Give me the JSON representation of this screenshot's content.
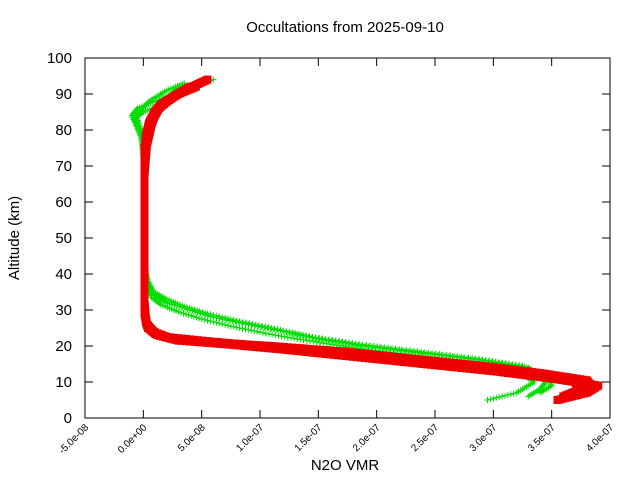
{
  "chart_data": {
    "type": "scatter",
    "title": "Occultations from 2025-09-10",
    "xlabel": "N2O VMR",
    "ylabel": "Altitude (km)",
    "xlim": [
      -5e-08,
      4e-07
    ],
    "ylim": [
      0,
      100
    ],
    "x_ticks": [
      -5e-08,
      0,
      5e-08,
      1e-07,
      1.5e-07,
      2e-07,
      2.5e-07,
      3e-07,
      3.5e-07,
      4e-07
    ],
    "x_tick_labels": [
      "-5.0e-08",
      "0.0e+00",
      "5.0e-08",
      "1.0e-07",
      "1.5e-07",
      "2.0e-07",
      "2.5e-07",
      "3.0e-07",
      "3.5e-07",
      "4.0e-07"
    ],
    "y_ticks": [
      0,
      10,
      20,
      30,
      40,
      50,
      60,
      70,
      80,
      90,
      100
    ],
    "y_tick_labels": [
      "0",
      "10",
      "20",
      "30",
      "40",
      "50",
      "60",
      "70",
      "80",
      "90",
      "100"
    ],
    "grid": false,
    "legend": "none",
    "series": [
      {
        "color": "#00dd00",
        "marker": "plus",
        "profiles": [
          [
            [
              3.3e-07,
              6
            ],
            [
              3.4e-07,
              8
            ],
            [
              3.45e-07,
              10
            ],
            [
              3.3e-07,
              14
            ],
            [
              2.9e-07,
              16
            ],
            [
              2.4e-07,
              18
            ],
            [
              1.9e-07,
              20
            ],
            [
              1.5e-07,
              22
            ],
            [
              1.2e-07,
              24
            ],
            [
              9e-08,
              26
            ],
            [
              6e-08,
              28
            ],
            [
              4e-08,
              30
            ],
            [
              2e-08,
              32
            ],
            [
              1e-08,
              34
            ],
            [
              5e-09,
              36
            ],
            [
              2e-09,
              40
            ],
            [
              1e-09,
              50
            ],
            [
              1e-09,
              60
            ],
            [
              1e-09,
              70
            ],
            [
              -2e-09,
              78
            ],
            [
              -1e-08,
              84
            ],
            [
              -5e-09,
              86
            ],
            [
              1e-08,
              88
            ],
            [
              2.5e-08,
              90
            ],
            [
              4e-08,
              92
            ],
            [
              6e-08,
              94
            ]
          ],
          [
            [
              2.95e-07,
              5
            ],
            [
              3.2e-07,
              7
            ],
            [
              3.35e-07,
              10
            ],
            [
              3.2e-07,
              13
            ],
            [
              2.8e-07,
              15
            ],
            [
              2.3e-07,
              17.5
            ],
            [
              1.8e-07,
              19.5
            ],
            [
              1.4e-07,
              21.5
            ],
            [
              1.05e-07,
              23.5
            ],
            [
              7.5e-08,
              25.5
            ],
            [
              5e-08,
              27.5
            ],
            [
              3e-08,
              29.5
            ],
            [
              1.5e-08,
              31.5
            ],
            [
              7e-09,
              33.5
            ],
            [
              3e-09,
              37
            ],
            [
              1e-09,
              45
            ],
            [
              1e-09,
              55
            ],
            [
              1e-09,
              65
            ],
            [
              0,
              75
            ],
            [
              -3e-09,
              80
            ],
            [
              -8e-09,
              83
            ],
            [
              0,
              85
            ],
            [
              1.5e-08,
              87
            ],
            [
              3e-08,
              92
            ]
          ],
          [
            [
              3.4e-07,
              7
            ],
            [
              3.5e-07,
              9
            ],
            [
              3.48e-07,
              11
            ],
            [
              3.25e-07,
              14.5
            ],
            [
              2.85e-07,
              16.5
            ],
            [
              2.35e-07,
              18.5
            ],
            [
              1.85e-07,
              20.5
            ],
            [
              1.45e-07,
              22.5
            ],
            [
              1.1e-07,
              25
            ],
            [
              8e-08,
              27
            ],
            [
              5.5e-08,
              29
            ],
            [
              3.5e-08,
              31
            ],
            [
              2e-08,
              33
            ],
            [
              9e-09,
              35
            ],
            [
              4e-09,
              38
            ],
            [
              1e-09,
              42
            ],
            [
              1e-09,
              52
            ],
            [
              1e-09,
              62
            ],
            [
              1e-09,
              72
            ],
            [
              -1e-09,
              79
            ],
            [
              -6e-09,
              84
            ],
            [
              5e-09,
              88
            ],
            [
              2e-08,
              91
            ],
            [
              3.5e-08,
              93
            ]
          ]
        ]
      },
      {
        "color": "#ee0000",
        "marker": "square",
        "profiles": [
          [
            [
              3.6e-07,
              6
            ],
            [
              3.75e-07,
              8
            ],
            [
              3.7e-07,
              10
            ],
            [
              3.3e-07,
              12
            ],
            [
              2.8e-07,
              14
            ],
            [
              2.2e-07,
              16
            ],
            [
              1.6e-07,
              18
            ],
            [
              1e-07,
              20
            ],
            [
              5e-08,
              21.5
            ],
            [
              2e-08,
              22.5
            ],
            [
              8e-09,
              24
            ],
            [
              3e-09,
              26
            ],
            [
              2e-09,
              28
            ],
            [
              1e-09,
              32
            ],
            [
              1e-09,
              40
            ],
            [
              1e-09,
              50
            ],
            [
              1e-09,
              60
            ],
            [
              1e-09,
              70
            ],
            [
              2e-09,
              78
            ],
            [
              5e-09,
              82
            ],
            [
              1e-08,
              85
            ],
            [
              2e-08,
              88
            ],
            [
              3.5e-08,
              91
            ],
            [
              5.5e-08,
              94
            ]
          ],
          [
            [
              3.55e-07,
              5
            ],
            [
              3.8e-07,
              7
            ],
            [
              3.9e-07,
              9
            ],
            [
              3.5e-07,
              11
            ],
            [
              3e-07,
              13
            ],
            [
              2.4e-07,
              15
            ],
            [
              1.8e-07,
              17
            ],
            [
              1.2e-07,
              19
            ],
            [
              7e-08,
              20.5
            ],
            [
              3e-08,
              21.5
            ],
            [
              1.2e-08,
              23
            ],
            [
              4e-09,
              25
            ],
            [
              2e-09,
              27
            ],
            [
              1e-09,
              30
            ],
            [
              1e-09,
              38
            ],
            [
              1e-09,
              48
            ],
            [
              1e-09,
              58
            ],
            [
              1e-09,
              68
            ],
            [
              3e-09,
              76
            ],
            [
              8e-09,
              83
            ],
            [
              1.5e-08,
              87
            ],
            [
              3e-08,
              90
            ],
            [
              4.5e-08,
              92
            ]
          ],
          [
            [
              3.7e-07,
              6.5
            ],
            [
              3.85e-07,
              8.5
            ],
            [
              3.8e-07,
              10.5
            ],
            [
              3.4e-07,
              12.5
            ],
            [
              2.9e-07,
              14.5
            ],
            [
              2.3e-07,
              16.5
            ],
            [
              1.7e-07,
              18.5
            ],
            [
              1.1e-07,
              20
            ],
            [
              6e-08,
              21
            ],
            [
              2.5e-08,
              22
            ],
            [
              1e-08,
              23.5
            ],
            [
              3e-09,
              26
            ],
            [
              1e-09,
              29
            ],
            [
              1e-09,
              35
            ],
            [
              1e-09,
              45
            ],
            [
              1e-09,
              55
            ],
            [
              1e-09,
              65
            ],
            [
              1e-09,
              75
            ],
            [
              6e-09,
              81
            ],
            [
              1.2e-08,
              86
            ],
            [
              2.5e-08,
              89
            ],
            [
              4e-08,
              92
            ]
          ]
        ]
      }
    ]
  }
}
